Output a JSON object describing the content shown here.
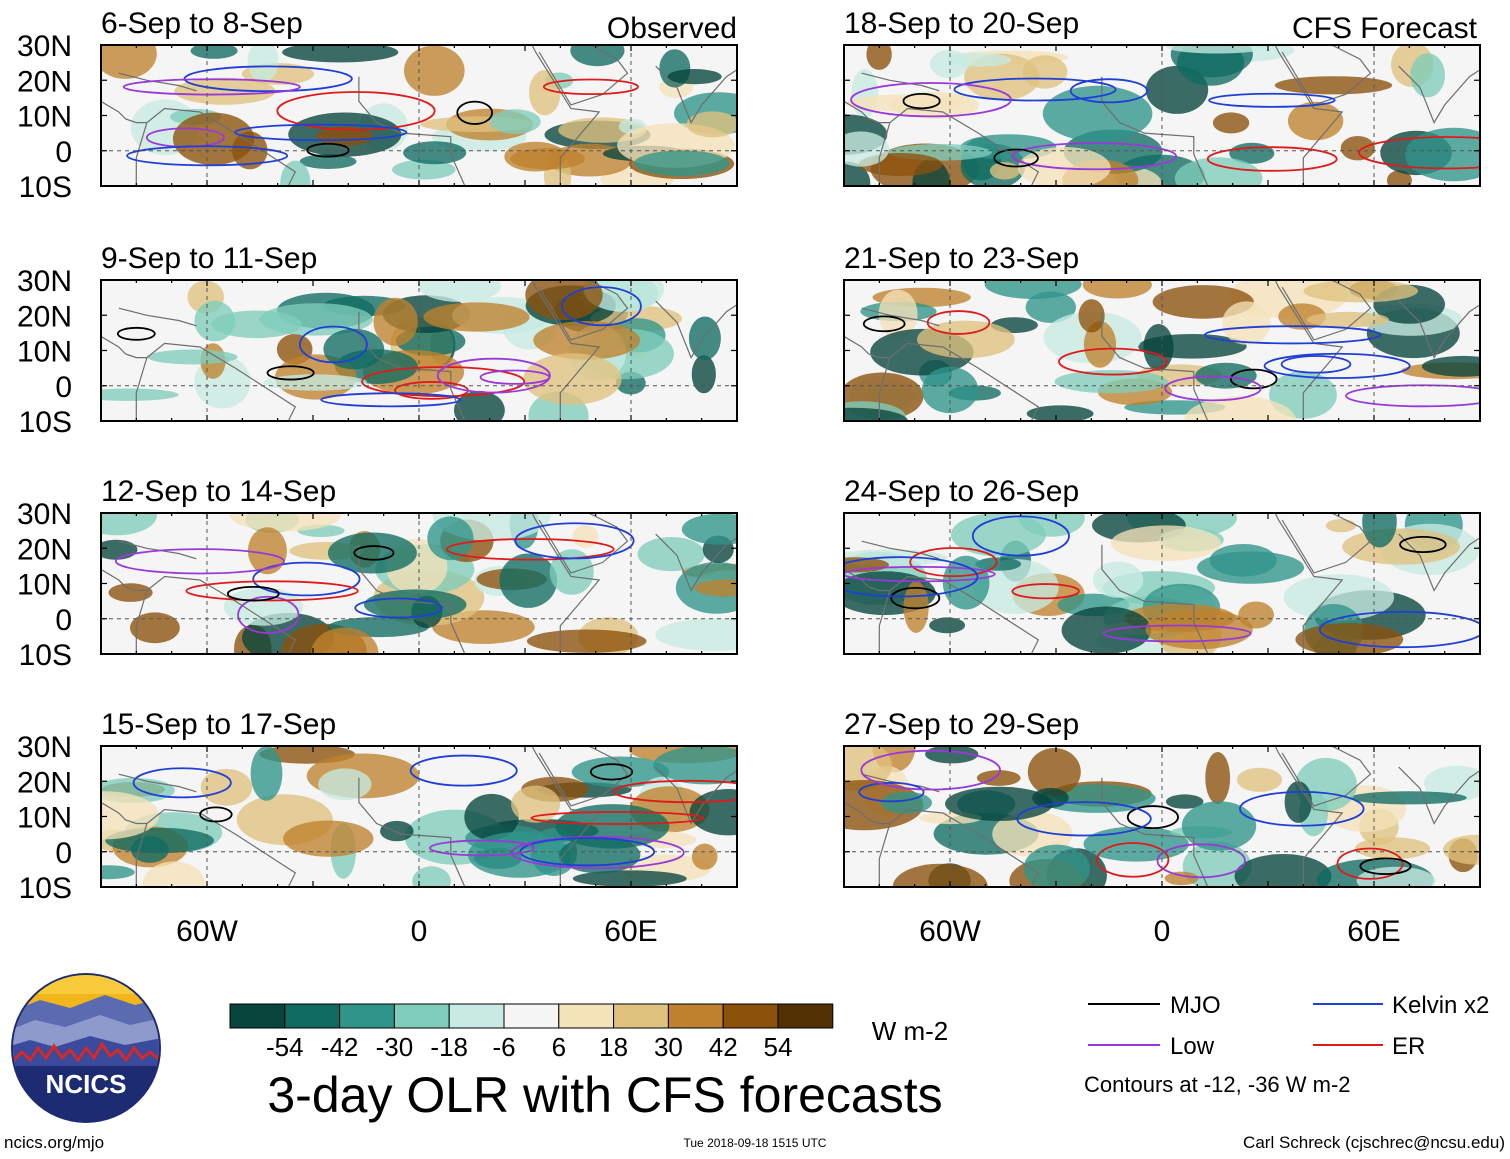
{
  "chart_data": {
    "type": "heatmap",
    "title": "3-day OLR with CFS forecasts",
    "units": "W m-2",
    "columns": [
      {
        "header": "Observed",
        "panels": [
          "6-Sep to 8-Sep",
          "9-Sep to 11-Sep",
          "12-Sep to 14-Sep",
          "15-Sep to 17-Sep"
        ]
      },
      {
        "header": "CFS Forecast",
        "panels": [
          "18-Sep to 20-Sep",
          "21-Sep to 23-Sep",
          "24-Sep to 26-Sep",
          "27-Sep to 29-Sep"
        ]
      }
    ],
    "lat_ticks": [
      "30N",
      "20N",
      "10N",
      "0",
      "10S"
    ],
    "lon_ticks": [
      "60W",
      "0",
      "60E"
    ],
    "lon_range": [
      -90,
      90
    ],
    "lat_range": [
      -10,
      30
    ],
    "colorbar": {
      "labels": [
        "-54",
        "-42",
        "-30",
        "-18",
        "-6",
        "6",
        "18",
        "30",
        "42",
        "54"
      ],
      "colors": [
        "#07443c",
        "#0f6b62",
        "#2f958a",
        "#7fcdbb",
        "#c7ebe2",
        "#f5f5f5",
        "#f4e2b8",
        "#dfc27d",
        "#bf812d",
        "#8c510a",
        "#543005"
      ]
    },
    "legend": [
      {
        "name": "MJO",
        "color": "#000000"
      },
      {
        "name": "Kelvin x2",
        "color": "#1f3fd6"
      },
      {
        "name": "Low",
        "color": "#9b38d9"
      },
      {
        "name": "ER",
        "color": "#e01a1a"
      }
    ],
    "contour_note": "Contours at -12, -36 W m-2"
  },
  "footer": {
    "left": "ncics.org/mjo",
    "center": "Tue 2018-09-18 1515 UTC",
    "right": "Carl Schreck (cjschrec@ncsu.edu)"
  },
  "logo": {
    "text": "NCICS"
  }
}
